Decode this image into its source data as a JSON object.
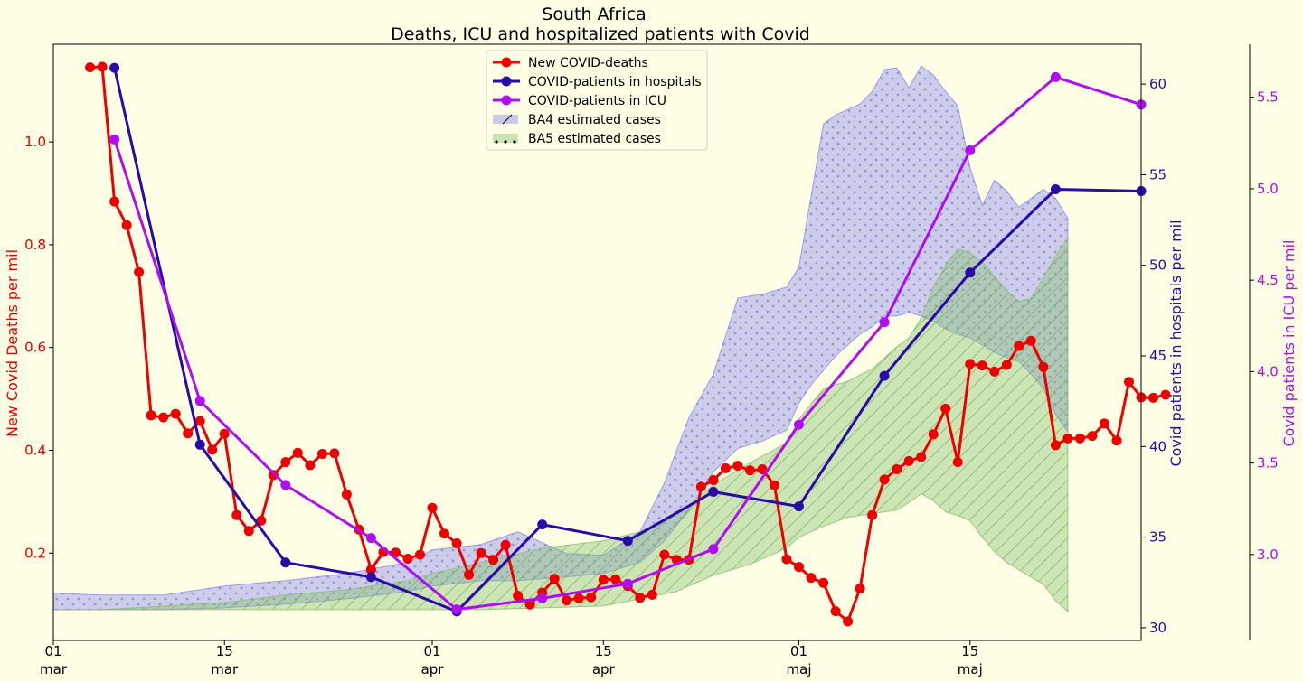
{
  "chart_data": {
    "type": "line",
    "title": "South Africa",
    "subtitle": "Deaths, ICU and hospitalized patients with Covid",
    "x_range": [
      "2022-03-01",
      "2022-05-29"
    ],
    "x_ticks": [
      {
        "date": "2022-03-01",
        "day": "01",
        "month": "mar"
      },
      {
        "date": "2022-03-15",
        "day": "15",
        "month": "mar"
      },
      {
        "date": "2022-04-01",
        "day": "01",
        "month": "apr"
      },
      {
        "date": "2022-04-15",
        "day": "15",
        "month": "apr"
      },
      {
        "date": "2022-05-01",
        "day": "01",
        "month": "maj"
      },
      {
        "date": "2022-05-15",
        "day": "15",
        "month": "maj"
      }
    ],
    "grid": false,
    "legend_position": "top-center",
    "axes": {
      "left": {
        "label": "New Covid Deaths per mil",
        "color": "#ee0000",
        "range": [
          0.03,
          1.19
        ],
        "ticks": [
          "0.2",
          "0.4",
          "0.6",
          "0.8",
          "1.0"
        ]
      },
      "right1": {
        "label": "Covid patients in hospitals per mil",
        "color": "#2a0aa8",
        "range": [
          29.3,
          62.2
        ],
        "ticks": [
          "30",
          "35",
          "40",
          "45",
          "50",
          "55",
          "60"
        ]
      },
      "right2": {
        "label": "Covid patients in ICU per mil",
        "color": "#b00ef0",
        "range": [
          2.53,
          5.79
        ],
        "ticks": [
          "3.0",
          "3.5",
          "4.0",
          "4.5",
          "5.0",
          "5.5"
        ]
      }
    },
    "legend": [
      {
        "label": "New COVID-deaths",
        "color": "#ee0000",
        "kind": "line"
      },
      {
        "label": "COVID-patients in hospitals",
        "color": "#2a0aa8",
        "kind": "line"
      },
      {
        "label": "COVID-patients in ICU",
        "color": "#b00ef0",
        "kind": "line"
      },
      {
        "label": "BA4 estimated cases",
        "color": "#8888ee",
        "kind": "area"
      },
      {
        "label": "BA5 estimated cases",
        "color": "#88c070",
        "kind": "area"
      }
    ],
    "series": [
      {
        "name": "New COVID-deaths",
        "axis": "left",
        "color": "#ee0000",
        "x": [
          "2022-03-04",
          "2022-03-05",
          "2022-03-06",
          "2022-03-07",
          "2022-03-08",
          "2022-03-09",
          "2022-03-10",
          "2022-03-11",
          "2022-03-12",
          "2022-03-13",
          "2022-03-14",
          "2022-03-15",
          "2022-03-16",
          "2022-03-17",
          "2022-03-18",
          "2022-03-19",
          "2022-03-20",
          "2022-03-21",
          "2022-03-22",
          "2022-03-23",
          "2022-03-24",
          "2022-03-25",
          "2022-03-26",
          "2022-03-27",
          "2022-03-28",
          "2022-03-29",
          "2022-03-30",
          "2022-03-31",
          "2022-04-01",
          "2022-04-02",
          "2022-04-03",
          "2022-04-04",
          "2022-04-05",
          "2022-04-06",
          "2022-04-07",
          "2022-04-08",
          "2022-04-09",
          "2022-04-10",
          "2022-04-11",
          "2022-04-12",
          "2022-04-13",
          "2022-04-14",
          "2022-04-15",
          "2022-04-16",
          "2022-04-17",
          "2022-04-18",
          "2022-04-19",
          "2022-04-20",
          "2022-04-21",
          "2022-04-22",
          "2022-04-23",
          "2022-04-24",
          "2022-04-25",
          "2022-04-26",
          "2022-04-27",
          "2022-04-28",
          "2022-04-29",
          "2022-04-30",
          "2022-05-01",
          "2022-05-02",
          "2022-05-03",
          "2022-05-04",
          "2022-05-05",
          "2022-05-06",
          "2022-05-07",
          "2022-05-08",
          "2022-05-09",
          "2022-05-10",
          "2022-05-11",
          "2022-05-12",
          "2022-05-13",
          "2022-05-14",
          "2022-05-15",
          "2022-05-16",
          "2022-05-17",
          "2022-05-18",
          "2022-05-19",
          "2022-05-20",
          "2022-05-21",
          "2022-05-22",
          "2022-05-23",
          "2022-05-24",
          "2022-05-25",
          "2022-05-26",
          "2022-05-27",
          "2022-05-28",
          "2022-05-29",
          "2022-05-30",
          "2022-05-31"
        ],
        "y": [
          1.145,
          1.146,
          0.884,
          0.838,
          0.747,
          0.468,
          0.464,
          0.471,
          0.433,
          0.457,
          0.401,
          0.432,
          0.274,
          0.243,
          0.263,
          0.352,
          0.377,
          0.395,
          0.371,
          0.393,
          0.394,
          0.314,
          0.246,
          0.168,
          0.202,
          0.201,
          0.189,
          0.197,
          0.288,
          0.238,
          0.219,
          0.158,
          0.2,
          0.187,
          0.216,
          0.117,
          0.1,
          0.123,
          0.15,
          0.108,
          0.112,
          0.114,
          0.148,
          0.149,
          0.136,
          0.113,
          0.119,
          0.197,
          0.187,
          0.187,
          0.329,
          0.342,
          0.365,
          0.37,
          0.361,
          0.363,
          0.332,
          0.188,
          0.173,
          0.152,
          0.142,
          0.087,
          0.067,
          0.131,
          0.274,
          0.343,
          0.363,
          0.379,
          0.387,
          0.431,
          0.481,
          0.377,
          0.568,
          0.565,
          0.553,
          0.566,
          0.603,
          0.613,
          0.562,
          0.41,
          0.423,
          0.423,
          0.428,
          0.452,
          0.419,
          0.533,
          0.503,
          0.502,
          0.508
        ]
      },
      {
        "name": "COVID-patients in hospitals",
        "axis": "right1",
        "color": "#2a0aa8",
        "x": [
          "2022-03-06",
          "2022-03-13",
          "2022-03-20",
          "2022-03-27",
          "2022-04-03",
          "2022-04-10",
          "2022-04-17",
          "2022-04-24",
          "2022-05-01",
          "2022-05-08",
          "2022-05-15",
          "2022-05-22",
          "2022-05-29"
        ],
        "y": [
          60.9,
          40.1,
          33.6,
          32.8,
          30.9,
          35.7,
          34.8,
          37.5,
          36.7,
          43.9,
          49.6,
          54.2,
          54.1
        ]
      },
      {
        "name": "COVID-patients in ICU",
        "axis": "right2",
        "color": "#b00ef0",
        "x": [
          "2022-03-06",
          "2022-03-13",
          "2022-03-20",
          "2022-03-27",
          "2022-04-03",
          "2022-04-10",
          "2022-04-17",
          "2022-04-24",
          "2022-05-01",
          "2022-05-08",
          "2022-05-15",
          "2022-05-22",
          "2022-05-29"
        ],
        "y": [
          5.27,
          3.84,
          3.38,
          3.09,
          2.7,
          2.76,
          2.84,
          3.03,
          3.71,
          4.27,
          5.21,
          5.61,
          5.46
        ]
      }
    ],
    "areas": [
      {
        "name": "BA4 estimated cases",
        "axis": "right1",
        "color": "#8888ee",
        "x": [
          "2022-03-01",
          "2022-03-05",
          "2022-03-10",
          "2022-03-15",
          "2022-03-20",
          "2022-03-25",
          "2022-03-30",
          "2022-04-01",
          "2022-04-05",
          "2022-04-08",
          "2022-04-12",
          "2022-04-15",
          "2022-04-18",
          "2022-04-20",
          "2022-04-22",
          "2022-04-24",
          "2022-04-26",
          "2022-04-28",
          "2022-04-30",
          "2022-05-01",
          "2022-05-02",
          "2022-05-03",
          "2022-05-04",
          "2022-05-06",
          "2022-05-07",
          "2022-05-08",
          "2022-05-09",
          "2022-05-10",
          "2022-05-11",
          "2022-05-12",
          "2022-05-13",
          "2022-05-14",
          "2022-05-15",
          "2022-05-16",
          "2022-05-17",
          "2022-05-18",
          "2022-05-19",
          "2022-05-20",
          "2022-05-21",
          "2022-05-22",
          "2022-05-23"
        ],
        "y_low": [
          31.0,
          31.0,
          31.0,
          31.1,
          31.3,
          31.6,
          32.0,
          32.3,
          32.6,
          32.6,
          32.8,
          33.0,
          33.6,
          34.8,
          36.5,
          38.6,
          39.9,
          40.3,
          40.9,
          42.4,
          43.4,
          44.2,
          45.0,
          46.2,
          46.6,
          47.2,
          47.2,
          47.4,
          47.2,
          46.9,
          46.5,
          46.2,
          46.0,
          45.6,
          45.2,
          44.9,
          44.7,
          44.0,
          43.2,
          41.8,
          40.8
        ],
        "y_high": [
          31.9,
          31.8,
          31.8,
          32.3,
          32.6,
          33.0,
          33.6,
          34.3,
          34.6,
          35.3,
          34.1,
          34.0,
          35.3,
          38.0,
          41.6,
          44.0,
          48.2,
          48.4,
          48.8,
          49.9,
          53.8,
          57.8,
          58.3,
          58.9,
          59.6,
          60.8,
          60.9,
          59.8,
          61.0,
          60.5,
          59.6,
          58.8,
          55.4,
          53.3,
          54.7,
          54.1,
          53.2,
          53.7,
          54.2,
          53.7,
          52.6
        ]
      },
      {
        "name": "BA5 estimated cases",
        "axis": "right1",
        "color": "#88c070",
        "x": [
          "2022-03-01",
          "2022-03-05",
          "2022-03-10",
          "2022-03-15",
          "2022-03-20",
          "2022-03-25",
          "2022-03-30",
          "2022-04-01",
          "2022-04-05",
          "2022-04-10",
          "2022-04-15",
          "2022-04-18",
          "2022-04-21",
          "2022-04-24",
          "2022-04-27",
          "2022-04-30",
          "2022-05-01",
          "2022-05-03",
          "2022-05-05",
          "2022-05-07",
          "2022-05-09",
          "2022-05-10",
          "2022-05-11",
          "2022-05-12",
          "2022-05-13",
          "2022-05-14",
          "2022-05-15",
          "2022-05-16",
          "2022-05-17",
          "2022-05-18",
          "2022-05-19",
          "2022-05-20",
          "2022-05-21",
          "2022-05-22",
          "2022-05-23"
        ],
        "y_low": [
          31.0,
          31.0,
          31.0,
          31.0,
          31.0,
          31.0,
          31.0,
          31.0,
          31.0,
          31.1,
          31.2,
          31.6,
          32.0,
          32.9,
          33.5,
          34.4,
          35.0,
          35.6,
          36.1,
          36.3,
          36.5,
          36.9,
          37.4,
          37.0,
          36.4,
          36.2,
          35.9,
          35.0,
          34.2,
          33.6,
          33.2,
          32.8,
          32.4,
          31.5,
          30.9
        ],
        "y_high": [
          31.0,
          31.0,
          31.2,
          31.4,
          31.8,
          32.1,
          32.6,
          33.0,
          33.6,
          34.4,
          34.8,
          35.3,
          36.2,
          37.9,
          39.1,
          40.2,
          41.5,
          43.2,
          43.6,
          44.3,
          45.5,
          46.0,
          47.1,
          48.8,
          50.0,
          50.9,
          50.7,
          50.2,
          49.4,
          48.6,
          48.0,
          48.2,
          49.3,
          50.5,
          51.5
        ]
      }
    ]
  }
}
